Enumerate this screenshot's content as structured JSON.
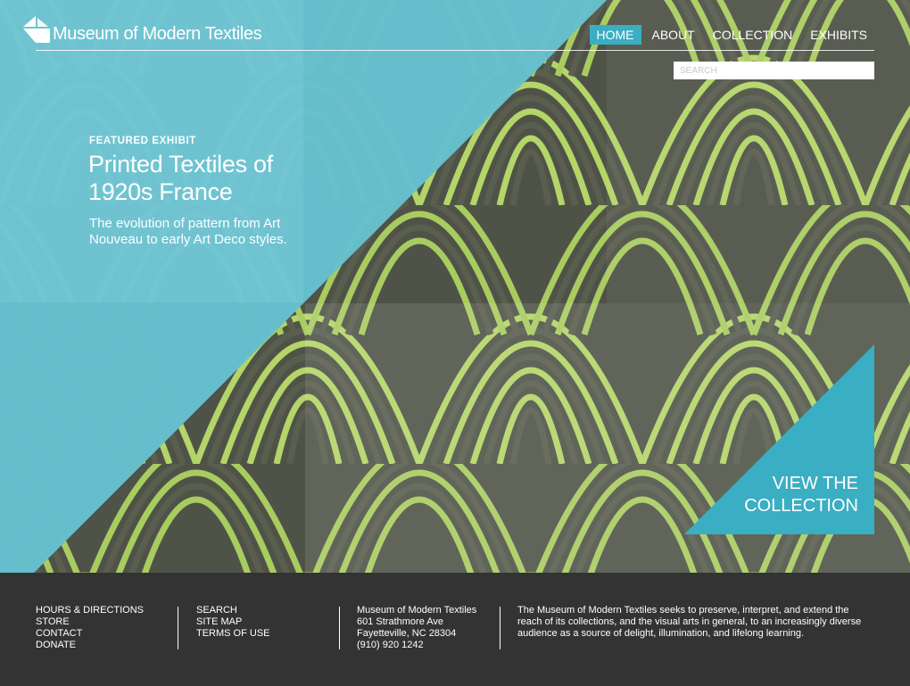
{
  "site": {
    "title": "Museum of Modern Textiles"
  },
  "nav": {
    "items": [
      {
        "label": "HOME",
        "active": true
      },
      {
        "label": "ABOUT",
        "active": false
      },
      {
        "label": "COLLECTION",
        "active": false
      },
      {
        "label": "EXHIBITS",
        "active": false
      }
    ]
  },
  "search": {
    "placeholder": "SEARCH"
  },
  "feature": {
    "kicker": "FEATURED EXHIBIT",
    "title": "Printed Textiles of 1920s France",
    "description": "The evolution of pattern from Art Nouveau to early Art Deco styles."
  },
  "cta": {
    "line1": "VIEW THE",
    "line2": "COLLECTION"
  },
  "footer": {
    "links_col1": [
      "HOURS & DIRECTIONS",
      "STORE",
      "CONTACT",
      "DONATE"
    ],
    "links_col2": [
      "SEARCH",
      "SITE MAP",
      "TERMS OF USE"
    ],
    "address": [
      "Museum of Modern Textiles",
      "601 Strathmore Ave",
      "Fayetteville, NC 28304",
      "(910) 920 1242"
    ],
    "mission": "The Museum of Modern Textiles seeks to preserve, interpret, and extend the reach of its collections, and the visual arts in general, to an increasingly diverse audience as a source of delight, illumination, and lifelong learning."
  },
  "colors": {
    "accent": "#3aaec3",
    "hero_blue": "#6cc3d1",
    "pattern_green": "#b7d86a",
    "pattern_dark": "#5c5f50",
    "footer_bg": "#333333"
  }
}
